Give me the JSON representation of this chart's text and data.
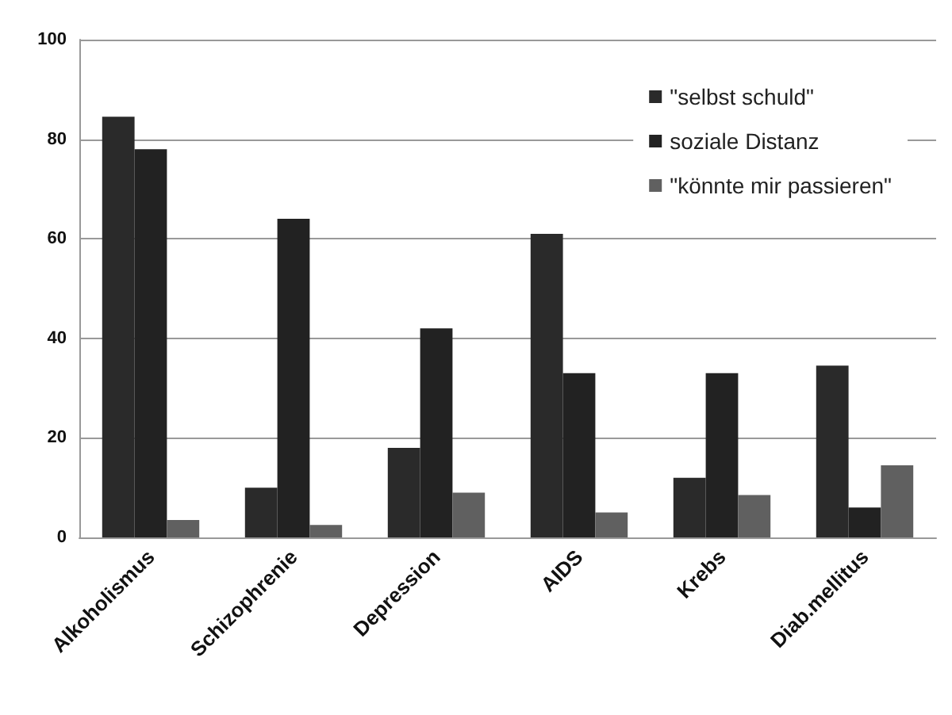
{
  "chart_data": {
    "type": "bar",
    "categories": [
      "Alkoholismus",
      "Schizophrenie",
      "Depression",
      "AIDS",
      "Krebs",
      "Diab.mellitus"
    ],
    "series": [
      {
        "name": "\"selbst schuld\"",
        "color": "#2a2a2a",
        "values": [
          84.5,
          10,
          18,
          61,
          12,
          34.5
        ]
      },
      {
        "name": "soziale Distanz",
        "color": "#222222",
        "values": [
          78,
          64,
          42,
          33,
          33,
          6
        ]
      },
      {
        "name": "\"könnte mir passieren\"",
        "color": "#606060",
        "values": [
          3.5,
          2.5,
          9,
          5,
          8.5,
          14.5
        ]
      }
    ],
    "ylim": [
      0,
      100
    ],
    "yticks": [
      0,
      20,
      40,
      60,
      80,
      100
    ],
    "grid": "y",
    "legend": "top right"
  }
}
